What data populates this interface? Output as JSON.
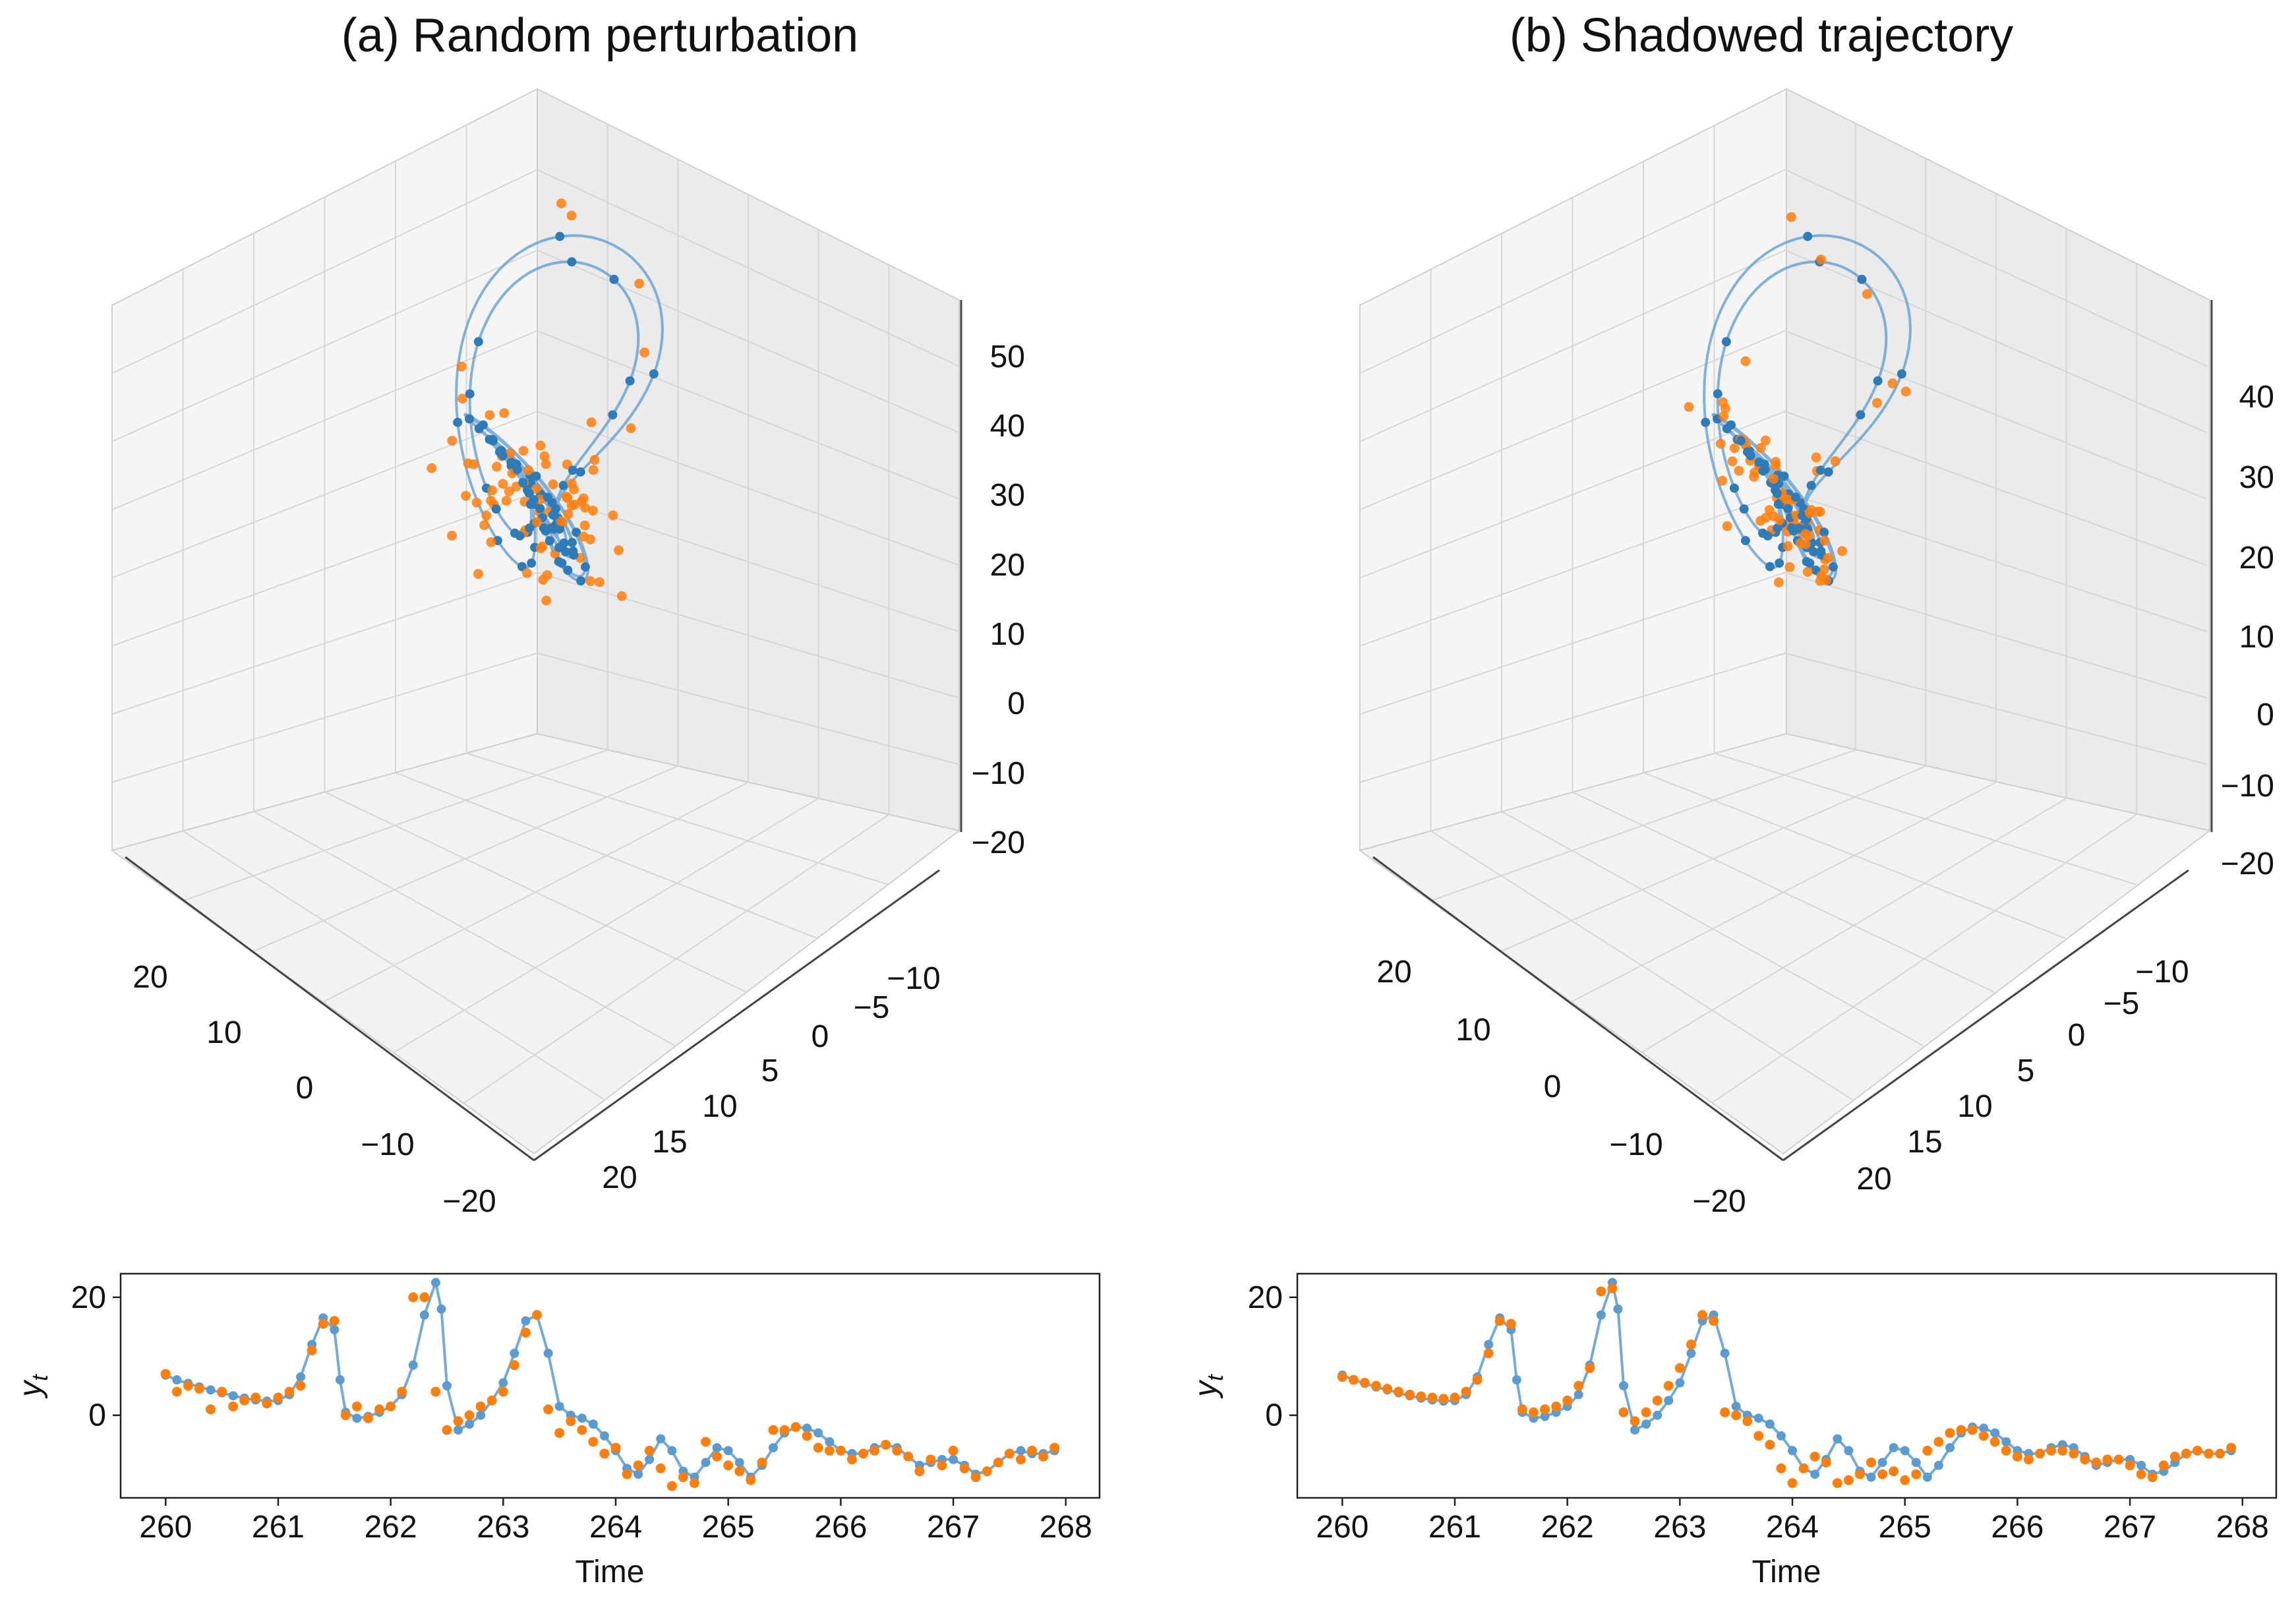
{
  "colors": {
    "trajectory": "#5b9bd0",
    "model_points": "#2f7bb8",
    "observations": "#ff7f0e",
    "pane": "#f0f0f0",
    "grid": "#d6d6d6"
  },
  "chart_data": [
    {
      "type": "scatter",
      "title": "(a) Random perturbation",
      "projection": "3d",
      "x_ticks": [
        "20",
        "10",
        "0",
        "−10",
        "−20"
      ],
      "y_ticks": [
        "−10",
        "−5",
        "0",
        "5",
        "10",
        "15",
        "20"
      ],
      "z_ticks": [
        "50",
        "40",
        "30",
        "20",
        "10",
        "0",
        "−10",
        "−20"
      ],
      "grid": true,
      "series": [
        {
          "role": "trajectory",
          "marker": "line+dots"
        },
        {
          "role": "observations",
          "marker": "dots"
        }
      ]
    },
    {
      "type": "scatter",
      "title": "(b) Shadowed trajectory",
      "projection": "3d",
      "x_ticks": [
        "20",
        "10",
        "0",
        "−10",
        "−20"
      ],
      "y_ticks": [
        "−10",
        "−5",
        "0",
        "5",
        "10",
        "15",
        "20"
      ],
      "z_ticks": [
        "40",
        "30",
        "20",
        "10",
        "0",
        "−10",
        "−20"
      ],
      "grid": true,
      "series": [
        {
          "role": "trajectory",
          "marker": "line+dots"
        },
        {
          "role": "observations",
          "marker": "dots"
        }
      ]
    },
    {
      "type": "line",
      "title": "",
      "xlabel": "Time",
      "ylabel": "y",
      "ylabel_sub": "t",
      "xlim": [
        259.6,
        268.3
      ],
      "ylim": [
        -14,
        24
      ],
      "x_ticks": [
        260,
        261,
        262,
        263,
        264,
        265,
        266,
        267,
        268
      ],
      "y_ticks": [
        20,
        0
      ],
      "series": [
        {
          "role": "model",
          "x": [
            260.0,
            260.1,
            260.2,
            260.3,
            260.4,
            260.5,
            260.6,
            260.7,
            260.8,
            260.9,
            261.0,
            261.1,
            261.2,
            261.3,
            261.4,
            261.5,
            261.55,
            261.6,
            261.7,
            261.8,
            261.9,
            262.0,
            262.1,
            262.2,
            262.3,
            262.4,
            262.45,
            262.5,
            262.6,
            262.7,
            262.8,
            262.9,
            263.0,
            263.1,
            263.2,
            263.3,
            263.4,
            263.5,
            263.6,
            263.7,
            263.8,
            263.9,
            264.0,
            264.1,
            264.2,
            264.3,
            264.4,
            264.5,
            264.6,
            264.7,
            264.8,
            264.9,
            265.0,
            265.1,
            265.2,
            265.3,
            265.4,
            265.5,
            265.6,
            265.7,
            265.8,
            265.9,
            266.0,
            266.1,
            266.2,
            266.3,
            266.4,
            266.5,
            266.6,
            266.7,
            266.8,
            266.9,
            267.0,
            267.1,
            267.2,
            267.3,
            267.4,
            267.5,
            267.6,
            267.7,
            267.8,
            267.9
          ],
          "values": [
            6.8,
            6.0,
            5.4,
            4.8,
            4.3,
            3.8,
            3.3,
            2.9,
            2.6,
            2.4,
            2.5,
            3.5,
            6.5,
            12.0,
            16.5,
            14.5,
            6.0,
            0.5,
            -0.5,
            -0.2,
            0.5,
            1.5,
            3.5,
            8.5,
            17.0,
            22.5,
            18.0,
            5.0,
            -2.5,
            -1.5,
            0.0,
            2.5,
            5.5,
            10.5,
            16.0,
            17.0,
            10.5,
            1.5,
            0.0,
            -0.5,
            -1.5,
            -3.5,
            -6.0,
            -9.0,
            -10.0,
            -7.5,
            -4.0,
            -6.0,
            -9.5,
            -10.5,
            -8.0,
            -5.5,
            -6.0,
            -8.0,
            -10.5,
            -8.5,
            -5.5,
            -3.0,
            -2.0,
            -2.2,
            -3.0,
            -4.5,
            -6.0,
            -6.5,
            -6.5,
            -5.5,
            -5.0,
            -5.5,
            -7.0,
            -8.5,
            -8.0,
            -7.5,
            -7.5,
            -8.5,
            -10.0,
            -9.5,
            -8.0,
            -6.5,
            -6.0,
            -6.5,
            -6.5,
            -6.0
          ]
        },
        {
          "role": "observations",
          "x": [
            260.0,
            260.1,
            260.2,
            260.3,
            260.4,
            260.5,
            260.6,
            260.7,
            260.8,
            260.9,
            261.0,
            261.1,
            261.2,
            261.3,
            261.4,
            261.5,
            261.6,
            261.7,
            261.8,
            261.9,
            262.0,
            262.1,
            262.2,
            262.3,
            262.4,
            262.5,
            262.6,
            262.7,
            262.8,
            262.9,
            263.0,
            263.1,
            263.2,
            263.3,
            263.4,
            263.5,
            263.6,
            263.7,
            263.8,
            263.9,
            264.0,
            264.1,
            264.2,
            264.3,
            264.4,
            264.5,
            264.6,
            264.7,
            264.8,
            264.9,
            265.0,
            265.1,
            265.2,
            265.3,
            265.4,
            265.5,
            265.6,
            265.7,
            265.8,
            265.9,
            266.0,
            266.1,
            266.2,
            266.3,
            266.4,
            266.5,
            266.6,
            266.7,
            266.8,
            266.9,
            267.0,
            267.1,
            267.2,
            267.3,
            267.4,
            267.5,
            267.6,
            267.7,
            267.8,
            267.9
          ],
          "values": [
            7.0,
            4.0,
            5.0,
            4.5,
            1.0,
            4.0,
            1.5,
            2.5,
            3.0,
            2.0,
            3.0,
            4.0,
            5.0,
            11.0,
            15.5,
            16.0,
            0.0,
            1.5,
            -0.5,
            1.0,
            1.5,
            4.0,
            20.0,
            20.0,
            4.0,
            -2.5,
            -1.0,
            0.0,
            1.5,
            2.5,
            4.0,
            8.5,
            14.0,
            17.0,
            1.0,
            -3.0,
            -1.0,
            -2.5,
            -4.5,
            -6.5,
            -5.5,
            -10.0,
            -8.5,
            -6.0,
            -9.0,
            -12.0,
            -10.5,
            -11.5,
            -4.5,
            -7.0,
            -8.5,
            -9.5,
            -11.0,
            -8.0,
            -2.5,
            -2.5,
            -2.0,
            -3.5,
            -5.5,
            -6.0,
            -6.0,
            -7.5,
            -6.5,
            -6.0,
            -5.0,
            -6.0,
            -7.0,
            -9.5,
            -7.5,
            -8.5,
            -6.0,
            -9.0,
            -10.5,
            -9.5,
            -8.0,
            -6.5,
            -7.5,
            -6.0,
            -7.0,
            -5.5
          ]
        }
      ]
    },
    {
      "type": "line",
      "title": "",
      "xlabel": "Time",
      "ylabel": "y",
      "ylabel_sub": "t",
      "xlim": [
        259.6,
        268.3
      ],
      "ylim": [
        -14,
        24
      ],
      "x_ticks": [
        260,
        261,
        262,
        263,
        264,
        265,
        266,
        267,
        268
      ],
      "y_ticks": [
        20,
        0
      ],
      "series": [
        {
          "role": "model",
          "x": [
            260.0,
            260.1,
            260.2,
            260.3,
            260.4,
            260.5,
            260.6,
            260.7,
            260.8,
            260.9,
            261.0,
            261.1,
            261.2,
            261.3,
            261.4,
            261.5,
            261.55,
            261.6,
            261.7,
            261.8,
            261.9,
            262.0,
            262.1,
            262.2,
            262.3,
            262.4,
            262.45,
            262.5,
            262.6,
            262.7,
            262.8,
            262.9,
            263.0,
            263.1,
            263.2,
            263.3,
            263.4,
            263.5,
            263.6,
            263.7,
            263.8,
            263.9,
            264.0,
            264.1,
            264.2,
            264.3,
            264.4,
            264.5,
            264.6,
            264.7,
            264.8,
            264.9,
            265.0,
            265.1,
            265.2,
            265.3,
            265.4,
            265.5,
            265.6,
            265.7,
            265.8,
            265.9,
            266.0,
            266.1,
            266.2,
            266.3,
            266.4,
            266.5,
            266.6,
            266.7,
            266.8,
            266.9,
            267.0,
            267.1,
            267.2,
            267.3,
            267.4,
            267.5,
            267.6,
            267.7,
            267.8,
            267.9
          ],
          "values": [
            6.8,
            6.0,
            5.4,
            4.8,
            4.3,
            3.8,
            3.3,
            2.9,
            2.6,
            2.4,
            2.5,
            3.5,
            6.5,
            12.0,
            16.5,
            14.5,
            6.0,
            0.5,
            -0.5,
            -0.2,
            0.5,
            1.5,
            3.5,
            8.5,
            17.0,
            22.5,
            18.0,
            5.0,
            -2.5,
            -1.5,
            0.0,
            2.5,
            5.5,
            10.5,
            16.0,
            17.0,
            10.5,
            1.5,
            0.0,
            -0.5,
            -1.5,
            -3.5,
            -6.0,
            -9.0,
            -10.0,
            -7.5,
            -4.0,
            -6.0,
            -9.5,
            -10.5,
            -8.0,
            -5.5,
            -6.0,
            -8.0,
            -10.5,
            -8.5,
            -5.5,
            -3.0,
            -2.0,
            -2.2,
            -3.0,
            -4.5,
            -6.0,
            -6.5,
            -6.5,
            -5.5,
            -5.0,
            -5.5,
            -7.0,
            -8.5,
            -8.0,
            -7.5,
            -7.5,
            -8.5,
            -10.0,
            -9.5,
            -8.0,
            -6.5,
            -6.0,
            -6.5,
            -6.5,
            -6.0
          ]
        },
        {
          "role": "observations",
          "x": [
            260.0,
            260.1,
            260.2,
            260.3,
            260.4,
            260.5,
            260.6,
            260.7,
            260.8,
            260.9,
            261.0,
            261.1,
            261.2,
            261.3,
            261.4,
            261.5,
            261.6,
            261.7,
            261.8,
            261.9,
            262.0,
            262.1,
            262.2,
            262.3,
            262.4,
            262.5,
            262.6,
            262.7,
            262.8,
            262.9,
            263.0,
            263.1,
            263.2,
            263.3,
            263.4,
            263.5,
            263.6,
            263.7,
            263.8,
            263.9,
            264.0,
            264.1,
            264.2,
            264.3,
            264.4,
            264.5,
            264.6,
            264.7,
            264.8,
            264.9,
            265.0,
            265.1,
            265.2,
            265.3,
            265.4,
            265.5,
            265.6,
            265.7,
            265.8,
            265.9,
            266.0,
            266.1,
            266.2,
            266.3,
            266.4,
            266.5,
            266.6,
            266.7,
            266.8,
            266.9,
            267.0,
            267.1,
            267.2,
            267.3,
            267.4,
            267.5,
            267.6,
            267.7,
            267.8,
            267.9
          ],
          "values": [
            6.5,
            6.0,
            5.5,
            5.0,
            4.5,
            4.0,
            3.5,
            3.2,
            3.0,
            2.8,
            3.0,
            4.0,
            6.0,
            10.5,
            16.0,
            15.5,
            1.0,
            0.5,
            1.0,
            1.5,
            2.5,
            5.0,
            8.0,
            21.0,
            21.5,
            0.5,
            -1.0,
            0.5,
            2.5,
            5.0,
            8.0,
            12.0,
            17.0,
            16.0,
            0.5,
            0.0,
            -1.0,
            -3.5,
            -5.0,
            -9.0,
            -11.5,
            -9.0,
            -7.0,
            -8.0,
            -11.5,
            -11.0,
            -10.0,
            -8.0,
            -10.0,
            -9.5,
            -11.0,
            -10.0,
            -6.0,
            -4.5,
            -3.0,
            -2.5,
            -2.5,
            -3.5,
            -4.5,
            -6.0,
            -7.0,
            -7.5,
            -6.5,
            -6.0,
            -6.0,
            -6.5,
            -7.5,
            -8.0,
            -7.5,
            -7.5,
            -8.5,
            -10.0,
            -10.5,
            -8.5,
            -7.0,
            -6.5,
            -6.0,
            -6.5,
            -6.5,
            -5.5
          ]
        }
      ]
    }
  ]
}
